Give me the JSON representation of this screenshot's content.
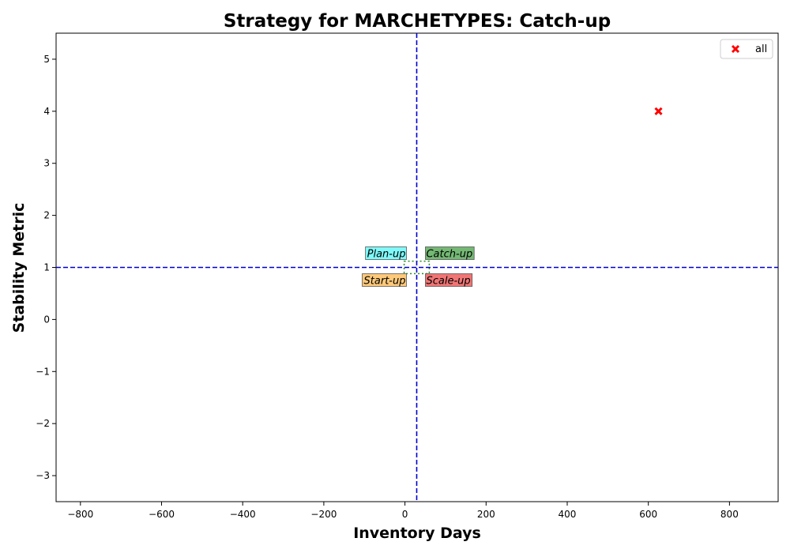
{
  "chart_data": {
    "type": "scatter",
    "title": "Strategy for MARCHETYPES: Catch-up",
    "xlabel": "Inventory Days",
    "ylabel": "Stability Metric",
    "xlim": [
      -860,
      920
    ],
    "ylim": [
      -3.5,
      5.5
    ],
    "xticks": [
      -800,
      -600,
      -400,
      -200,
      0,
      200,
      400,
      600,
      800
    ],
    "yticks": [
      -3,
      -2,
      -1,
      0,
      1,
      2,
      3,
      4,
      5
    ],
    "grid": false,
    "legend_position": "top-right",
    "reference_lines": {
      "x": 29,
      "y": 1,
      "color": "#0000cc"
    },
    "series": [
      {
        "name": "all",
        "marker": "x",
        "color": "#ff0000",
        "points": [
          {
            "x": 625,
            "y": 4
          }
        ]
      }
    ],
    "quadrant_labels": [
      {
        "text": "Plan-up",
        "x": 29,
        "y": 1,
        "pos": "upper-left",
        "color": "#7ff9f9"
      },
      {
        "text": "Catch-up",
        "x": 29,
        "y": 1,
        "pos": "upper-right",
        "color": "#74b874"
      },
      {
        "text": "Start-up",
        "x": 29,
        "y": 1,
        "pos": "lower-left",
        "color": "#fdc97a"
      },
      {
        "text": "Scale-up",
        "x": 29,
        "y": 1,
        "pos": "lower-right",
        "color": "#f07575"
      }
    ],
    "minor_rect": {
      "x0": -2,
      "x1": 60,
      "y0": 0.88,
      "y1": 1.12,
      "color": "#228b22"
    }
  }
}
